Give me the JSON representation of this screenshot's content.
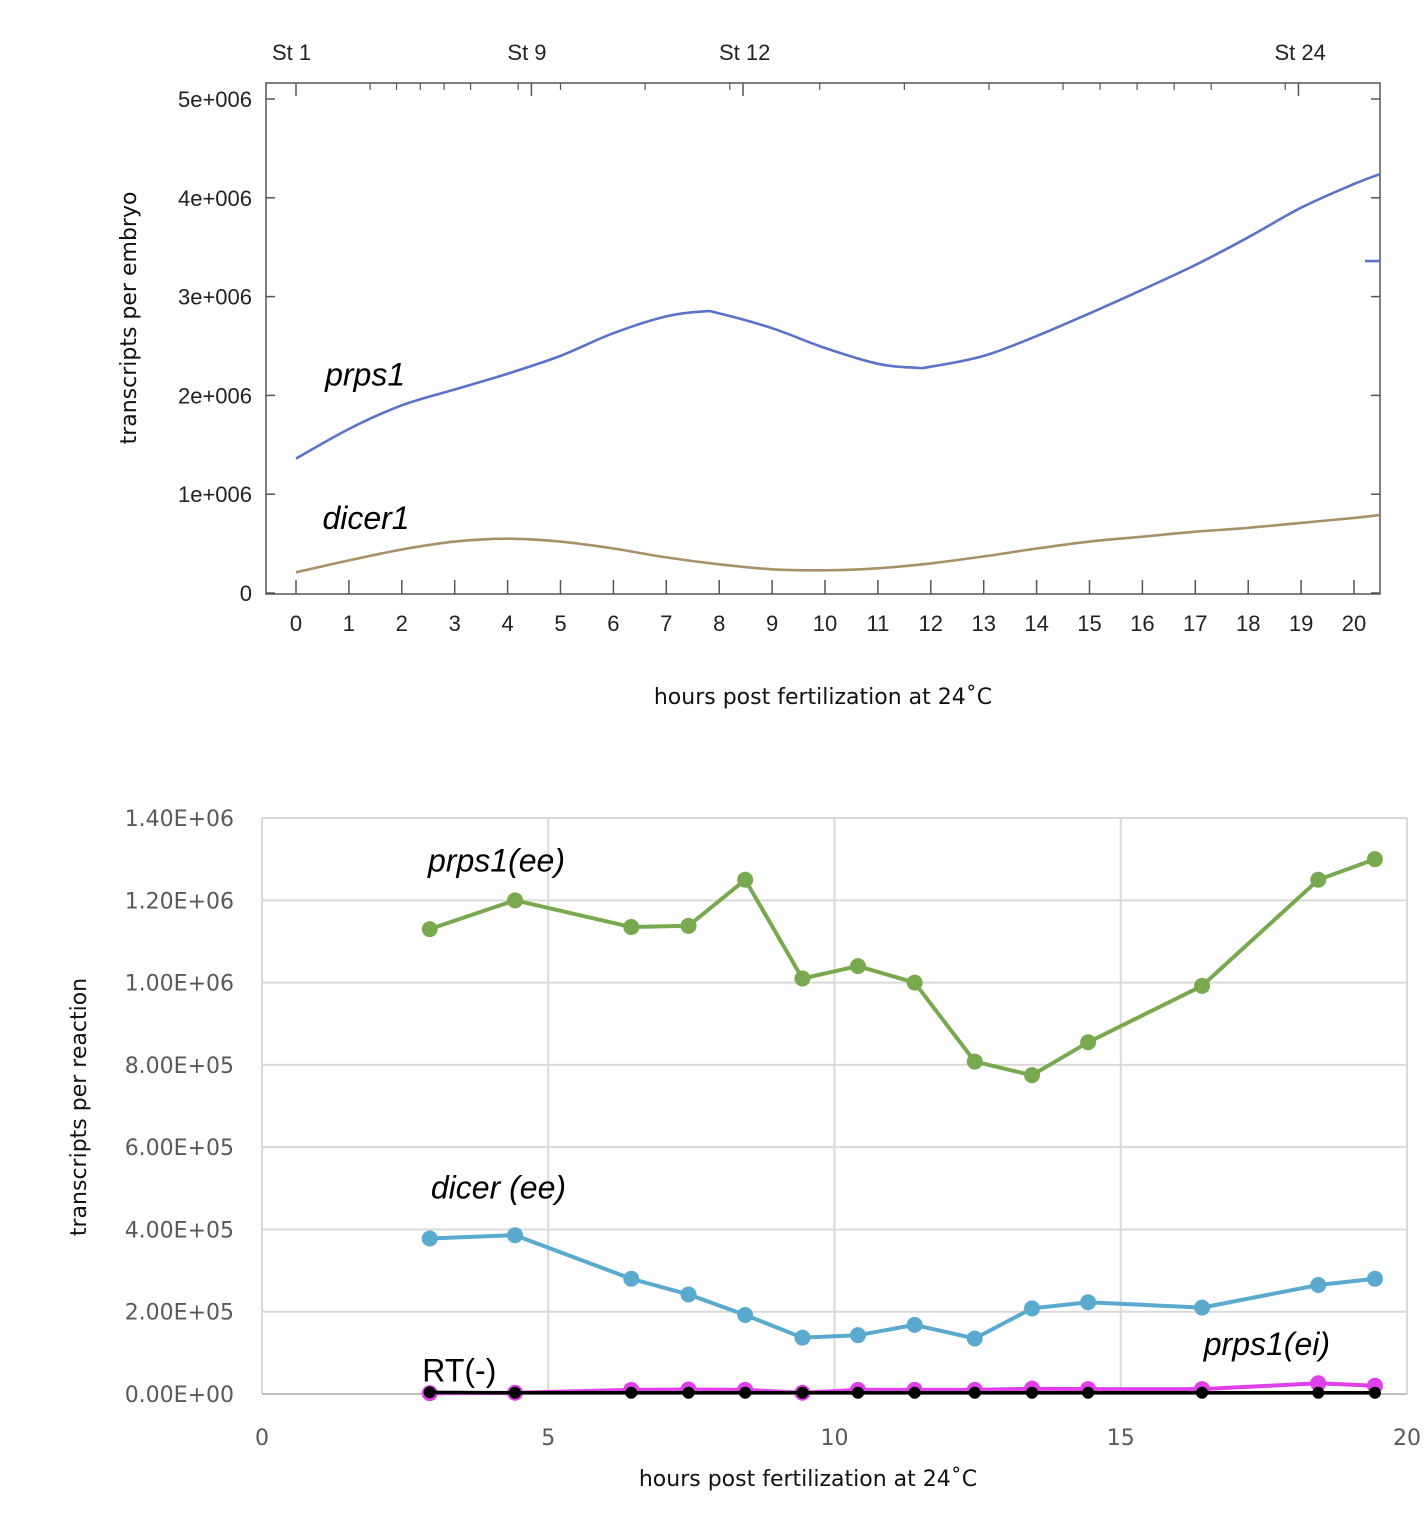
{
  "chart_data": [
    {
      "type": "line",
      "xlabel": "hours post fertilization at 24˚C",
      "ylabel": "transcripts per embryo",
      "xlim": [
        -0.55,
        20.5
      ],
      "ylim": [
        0,
        5000000
      ],
      "x_ticks": [
        0,
        1,
        2,
        3,
        4,
        5,
        6,
        7,
        8,
        9,
        10,
        11,
        12,
        13,
        14,
        15,
        16,
        17,
        18,
        19,
        20
      ],
      "x_tick_labels": [
        "0",
        "1",
        "2",
        "3",
        "4",
        "5",
        "6",
        "7",
        "8",
        "9",
        "10",
        "11",
        "12",
        "13",
        "14",
        "15",
        "16",
        "17",
        "18",
        "19",
        "20"
      ],
      "y_ticks": [
        0,
        1000000,
        2000000,
        3000000,
        4000000,
        5000000
      ],
      "y_tick_labels": [
        "0",
        "1e+006",
        "2e+006",
        "3e+006",
        "4e+006",
        "5e+006"
      ],
      "top_axis_labels": [
        {
          "label": "St 1",
          "x": 0
        },
        {
          "label": "St 9",
          "x": 4.45
        },
        {
          "label": "St 12",
          "x": 8.45
        },
        {
          "label": "St 24",
          "x": 18.95
        }
      ],
      "top_axis_minor_ticks": [
        1.4,
        1.9,
        2.35,
        2.8,
        3.3,
        4.2,
        5.0,
        6.6,
        8.2,
        9.9,
        11.5,
        13.1,
        14.5,
        15.2,
        15.9,
        16.6,
        17.3,
        18.7
      ],
      "grid": false,
      "series": [
        {
          "name": "prps1",
          "color": "#5a72c8",
          "x": [
            0,
            1,
            2,
            3,
            4,
            5,
            6,
            7,
            7.7,
            8,
            9,
            10,
            11,
            11.7,
            12,
            13,
            14,
            15,
            16,
            17,
            18,
            19,
            20,
            20.5
          ],
          "values": [
            1360000,
            1660000,
            1900000,
            2060000,
            2220000,
            2400000,
            2630000,
            2800000,
            2850000,
            2830000,
            2680000,
            2480000,
            2320000,
            2280000,
            2290000,
            2400000,
            2600000,
            2830000,
            3070000,
            3320000,
            3600000,
            3900000,
            4140000,
            4240000
          ]
        },
        {
          "name": "dicer1",
          "color": "#a89068",
          "x": [
            0,
            1,
            2,
            3,
            4,
            5,
            6,
            7,
            8,
            9,
            10,
            11,
            12,
            13,
            14,
            15,
            16,
            17,
            18,
            19,
            20,
            20.5
          ],
          "values": [
            210000,
            330000,
            440000,
            520000,
            550000,
            520000,
            450000,
            360000,
            290000,
            240000,
            230000,
            250000,
            300000,
            370000,
            450000,
            520000,
            570000,
            620000,
            660000,
            710000,
            760000,
            790000
          ]
        }
      ],
      "right_edge_mark": {
        "series": "prps1",
        "value": 3360000
      },
      "annotations": [
        {
          "text": "prps1",
          "x": 0.55,
          "y": 2100000,
          "italic": true
        },
        {
          "text": "dicer1",
          "x": 0.5,
          "y": 650000,
          "italic": true
        }
      ]
    },
    {
      "type": "line",
      "xlabel": "hours post fertilization at 24˚C",
      "ylabel": "transcripts per reaction",
      "xlim": [
        0,
        20
      ],
      "ylim": [
        0,
        1400000
      ],
      "x_ticks": [
        0,
        5,
        10,
        15,
        20
      ],
      "x_tick_labels": [
        "0",
        "5",
        "10",
        "15",
        "20"
      ],
      "y_ticks": [
        0,
        200000,
        400000,
        600000,
        800000,
        1000000,
        1200000,
        1400000
      ],
      "y_tick_labels": [
        "0.00E+00",
        "2.00E+05",
        "4.00E+05",
        "6.00E+05",
        "8.00E+05",
        "1.00E+06",
        "1.20E+06",
        "1.40E+06"
      ],
      "grid": true,
      "x": [
        2.93,
        4.42,
        6.45,
        7.45,
        8.44,
        9.44,
        10.41,
        11.4,
        12.45,
        13.45,
        14.43,
        16.42,
        18.45,
        19.44
      ],
      "series": [
        {
          "name": "prps1(ee)",
          "color": "#79a94f",
          "values": [
            1130000,
            1200000,
            1135000,
            1138000,
            1250000,
            1010000,
            1040000,
            1000000,
            808000,
            775000,
            855000,
            992000,
            1250000,
            1300000
          ]
        },
        {
          "name": "dicer (ee)",
          "color": "#5aaad0",
          "values": [
            378000,
            386000,
            280000,
            242000,
            192000,
            137000,
            143000,
            168000,
            135000,
            208000,
            223000,
            210000,
            265000,
            280000
          ]
        },
        {
          "name": "prps1(ei)",
          "color": "#e040e8",
          "values": [
            2000,
            3000,
            10000,
            11000,
            10000,
            3000,
            10000,
            10000,
            10000,
            13000,
            12000,
            12000,
            26000,
            20000
          ]
        },
        {
          "name": "RT(-)",
          "color": "#000000",
          "values": [
            4000,
            3000,
            3000,
            3000,
            3000,
            3000,
            3000,
            3000,
            3000,
            3000,
            3000,
            3000,
            3000,
            3000
          ]
        }
      ],
      "annotations": [
        {
          "text": "prps1(ee)",
          "x": 2.9,
          "y": 1270000,
          "italic": true
        },
        {
          "text": "dicer (ee)",
          "x": 2.95,
          "y": 475000,
          "italic": true
        },
        {
          "text": "prps1(ei)",
          "x": 16.45,
          "y": 95000,
          "italic": true
        },
        {
          "text": "RT(-)",
          "x": 2.8,
          "y": 30000,
          "italic": false
        }
      ]
    }
  ]
}
